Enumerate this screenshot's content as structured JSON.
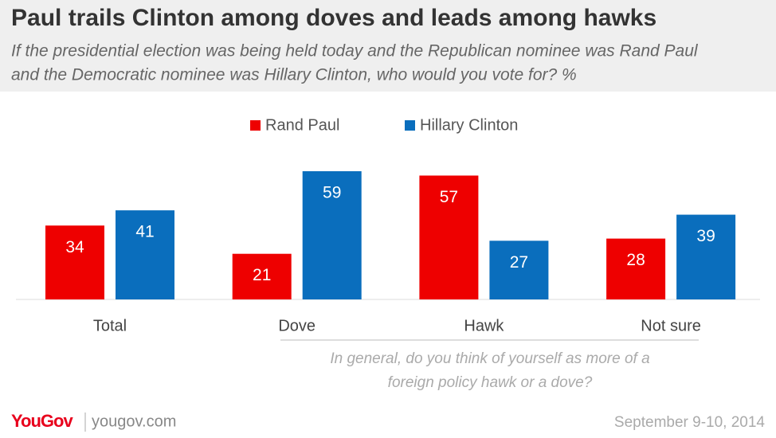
{
  "chart_data": {
    "type": "bar",
    "title": "Paul trails Clinton among doves and leads among hawks",
    "subtitle": [
      "If the presidential election was being held today and the Republican nominee was Rand Paul",
      "and the Democratic nominee was Hillary Clinton, who would you vote for? %"
    ],
    "categories": [
      "Total",
      "Dove",
      "Hawk",
      "Not sure"
    ],
    "series": [
      {
        "name": "Rand Paul",
        "color": "#ee0000",
        "values": [
          34,
          21,
          57,
          28
        ]
      },
      {
        "name": "Hillary Clinton",
        "color": "#0a6ebd",
        "values": [
          41,
          59,
          27,
          39
        ]
      }
    ],
    "annotation": [
      "In general, do you think of yourself as more of a",
      "foreign policy hawk or a dove?"
    ],
    "logo": "YouGov",
    "website": "yougov.com",
    "date": "September 9-10, 2014"
  }
}
